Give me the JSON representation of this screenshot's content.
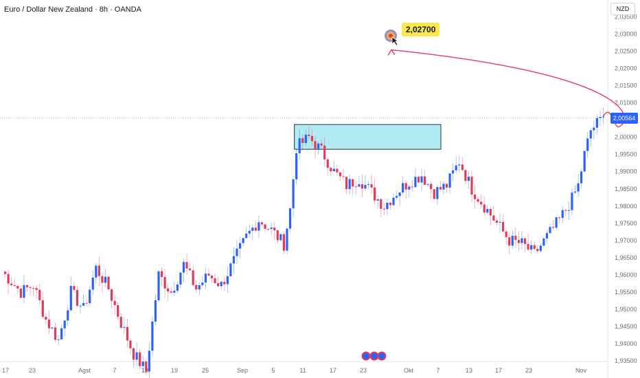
{
  "header": {
    "title": "Euro / Dollar New Zealand · 8h · OANDA",
    "currency_button": "NZD"
  },
  "target_label": "2,02700",
  "price_tag": "2,00564",
  "chart_data": {
    "type": "candlestick",
    "y_ticks": [
      "2,03500",
      "2,03000",
      "2,02500",
      "2,02000",
      "2,01500",
      "2,01000",
      "2,00500",
      "2,00000",
      "1,99500",
      "1,99000",
      "1,98500",
      "1,98000",
      "1,97500",
      "1,97000",
      "1,96500",
      "1,96000",
      "1,95500",
      "1,95000",
      "1,94500",
      "1,94000",
      "1,93500"
    ],
    "ylim": [
      1.935,
      2.0355
    ],
    "x_ticks": [
      "17",
      "23",
      "Agst",
      "7",
      "13",
      "19",
      "25",
      "Sep",
      "5",
      "11",
      "17",
      "23",
      "Okt",
      "7",
      "13",
      "17",
      "23",
      "Nov"
    ],
    "current_price": 2.00564,
    "target": 2.027,
    "zone": [
      1.9965,
      2.0037
    ],
    "up_color": "#2962ff",
    "down_color": "#e5395b",
    "anchors": [
      [
        0,
        1.961
      ],
      [
        6,
        1.955
      ],
      [
        10,
        1.957
      ],
      [
        14,
        1.947
      ],
      [
        18,
        1.941
      ],
      [
        22,
        1.955
      ],
      [
        26,
        1.95
      ],
      [
        30,
        1.962
      ],
      [
        34,
        1.956
      ],
      [
        38,
        1.946
      ],
      [
        42,
        1.937
      ],
      [
        46,
        1.932
      ],
      [
        50,
        1.96
      ],
      [
        54,
        1.955
      ],
      [
        58,
        1.963
      ],
      [
        62,
        1.956
      ],
      [
        66,
        1.96
      ],
      [
        70,
        1.957
      ],
      [
        74,
        1.964
      ],
      [
        78,
        1.971
      ],
      [
        82,
        1.976
      ],
      [
        86,
        1.973
      ],
      [
        90,
        1.969
      ],
      [
        92,
        1.979
      ],
      [
        94,
        1.997
      ],
      [
        98,
        2.0
      ],
      [
        102,
        1.996
      ],
      [
        106,
        1.99
      ],
      [
        110,
        1.986
      ],
      [
        114,
        1.988
      ],
      [
        118,
        1.984
      ],
      [
        122,
        1.98
      ],
      [
        126,
        1.984
      ],
      [
        130,
        1.987
      ],
      [
        134,
        1.989
      ],
      [
        138,
        1.984
      ],
      [
        142,
        1.986
      ],
      [
        146,
        1.993
      ],
      [
        150,
        1.985
      ],
      [
        154,
        1.98
      ],
      [
        158,
        1.975
      ],
      [
        162,
        1.97
      ],
      [
        166,
        1.969
      ],
      [
        170,
        1.966
      ],
      [
        174,
        1.971
      ],
      [
        178,
        1.976
      ],
      [
        182,
        1.982
      ],
      [
        184,
        1.986
      ],
      [
        186,
        1.995
      ],
      [
        188,
        2.002
      ],
      [
        192,
        2.006
      ]
    ]
  }
}
